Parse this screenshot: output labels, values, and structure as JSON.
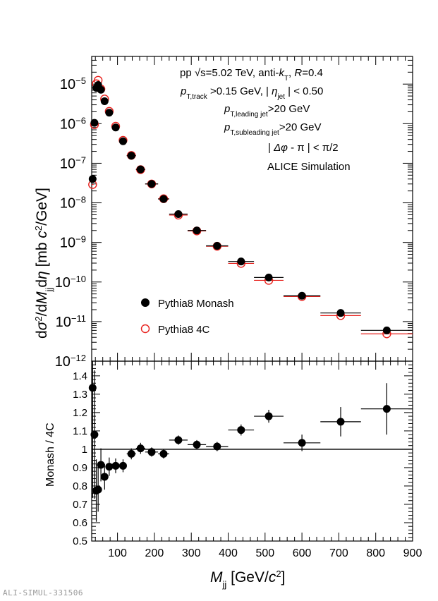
{
  "figure": {
    "preprint_id": "ALI-SIMUL-331506"
  },
  "chart_data": [
    {
      "type": "scatter",
      "panel": "top",
      "ylabel_parts": {
        "a": "d",
        "b": "σ",
        "c": "2",
        "d": "/d",
        "e": "M",
        "f": "jj",
        "g": "d",
        "h": "η",
        "i": " [mb ",
        "j": "c",
        "k": "2",
        "l": "/GeV]"
      },
      "yscale": "log",
      "ylim": [
        1e-12,
        5e-05
      ],
      "xlim": [
        30,
        900
      ],
      "y_ticks": [
        {
          "value": 1e-12,
          "label": "10",
          "exp": "−12"
        },
        {
          "value": 1e-11,
          "label": "10",
          "exp": "−11"
        },
        {
          "value": 1e-10,
          "label": "10",
          "exp": "−10"
        },
        {
          "value": 1e-09,
          "label": "10",
          "exp": "−9"
        },
        {
          "value": 1e-08,
          "label": "10",
          "exp": "−8"
        },
        {
          "value": 1e-07,
          "label": "10",
          "exp": "−7"
        },
        {
          "value": 1e-06,
          "label": "10",
          "exp": "−6"
        },
        {
          "value": 1e-05,
          "label": "10",
          "exp": "−5"
        }
      ],
      "annotations": {
        "line1": {
          "a": "pp ",
          "b": "√",
          "c": "s",
          "d": "=5.02 TeV, anti-",
          "e": "k",
          "f": "T",
          "g": ", ",
          "h": "R",
          "i": "=0.4"
        },
        "line2": {
          "a": "p",
          "b": "T,track",
          "c": " >0.15 GeV, | ",
          "d": "η",
          "e": "jet",
          "f": " | < 0.50"
        },
        "line3": {
          "a": "p",
          "b": "T,leading jet",
          "c": ">20 GeV"
        },
        "line4": {
          "a": "p",
          "b": "T,subleading jet",
          "c": ">20 GeV"
        },
        "line5": {
          "a": "| ",
          "b": "Δφ",
          "c": " - π | < π/2"
        },
        "line6": "ALICE Simulation"
      },
      "legend_placement": "bottom-left",
      "series": [
        {
          "name": "Pythia8 Monash",
          "marker": "filled-circle",
          "color": "#000000",
          "points": [
            {
              "x": 32.5,
              "xerr": 2.5,
              "y": 4e-08
            },
            {
              "x": 37.5,
              "xerr": 2.5,
              "y": 1.05e-06
            },
            {
              "x": 42.5,
              "xerr": 2.5,
              "y": 8e-06
            },
            {
              "x": 47.5,
              "xerr": 2.5,
              "y": 9.5e-06
            },
            {
              "x": 55,
              "xerr": 5,
              "y": 7.2e-06
            },
            {
              "x": 65,
              "xerr": 5,
              "y": 3.7e-06
            },
            {
              "x": 77.5,
              "xerr": 7.5,
              "y": 1.9e-06
            },
            {
              "x": 95,
              "xerr": 10,
              "y": 8e-07
            },
            {
              "x": 115,
              "xerr": 10,
              "y": 3.6e-07
            },
            {
              "x": 137.5,
              "xerr": 12.5,
              "y": 1.55e-07
            },
            {
              "x": 162.5,
              "xerr": 12.5,
              "y": 7e-08
            },
            {
              "x": 192.5,
              "xerr": 17.5,
              "y": 3e-08
            },
            {
              "x": 225,
              "xerr": 15,
              "y": 1.25e-08
            },
            {
              "x": 265,
              "xerr": 25,
              "y": 5.2e-09
            },
            {
              "x": 315,
              "xerr": 25,
              "y": 2e-09
            },
            {
              "x": 370,
              "xerr": 30,
              "y": 8.2e-10
            },
            {
              "x": 435,
              "xerr": 35,
              "y": 3.3e-10
            },
            {
              "x": 510,
              "xerr": 40,
              "y": 1.3e-10
            },
            {
              "x": 600,
              "xerr": 50,
              "y": 4.5e-11
            },
            {
              "x": 705,
              "xerr": 55,
              "y": 1.65e-11
            },
            {
              "x": 830,
              "xerr": 70,
              "y": 6e-12
            }
          ]
        },
        {
          "name": "Pythia8 4C",
          "marker": "open-circle",
          "color": "#e8201c",
          "points": [
            {
              "x": 32.5,
              "xerr": 2.5,
              "y": 2.9e-08
            },
            {
              "x": 37.5,
              "xerr": 2.5,
              "y": 9.5e-07
            },
            {
              "x": 42.5,
              "xerr": 2.5,
              "y": 1.02e-05
            },
            {
              "x": 47.5,
              "xerr": 2.5,
              "y": 1.25e-05
            },
            {
              "x": 55,
              "xerr": 5,
              "y": 7.5e-06
            },
            {
              "x": 65,
              "xerr": 5,
              "y": 4.2e-06
            },
            {
              "x": 77.5,
              "xerr": 7.5,
              "y": 2.05e-06
            },
            {
              "x": 95,
              "xerr": 10,
              "y": 8.6e-07
            },
            {
              "x": 115,
              "xerr": 10,
              "y": 3.8e-07
            },
            {
              "x": 137.5,
              "xerr": 12.5,
              "y": 1.58e-07
            },
            {
              "x": 162.5,
              "xerr": 12.5,
              "y": 6.9e-08
            },
            {
              "x": 192.5,
              "xerr": 17.5,
              "y": 3e-08
            },
            {
              "x": 225,
              "xerr": 15,
              "y": 1.27e-08
            },
            {
              "x": 265,
              "xerr": 25,
              "y": 4.9e-09
            },
            {
              "x": 315,
              "xerr": 25,
              "y": 1.95e-09
            },
            {
              "x": 370,
              "xerr": 30,
              "y": 8e-10
            },
            {
              "x": 435,
              "xerr": 35,
              "y": 2.95e-10
            },
            {
              "x": 510,
              "xerr": 40,
              "y": 1.1e-10
            },
            {
              "x": 600,
              "xerr": 50,
              "y": 4.3e-11
            },
            {
              "x": 705,
              "xerr": 55,
              "y": 1.42e-11
            },
            {
              "x": 830,
              "xerr": 70,
              "y": 4.9e-12
            }
          ]
        }
      ]
    },
    {
      "type": "scatter",
      "panel": "bottom",
      "ylabel": "Monash / 4C",
      "xlabel_parts": {
        "a": "M",
        "b": "jj",
        "c": " [GeV/",
        "d": "c",
        "e": "2",
        "f": "]"
      },
      "ylim": [
        0.5,
        1.48
      ],
      "xlim": [
        30,
        900
      ],
      "reference_line": 1.0,
      "x_ticks": [
        100,
        200,
        300,
        400,
        500,
        600,
        700,
        800,
        900
      ],
      "y_ticks": [
        0.5,
        0.6,
        0.7,
        0.8,
        0.9,
        1.0,
        1.1,
        1.2,
        1.3,
        1.4
      ],
      "y_tick_labels": [
        "0.5",
        "0.6",
        "0.7",
        "0.8",
        "0.9",
        "1",
        "1.1",
        "1.2",
        "1.3",
        "1.4"
      ],
      "series": [
        {
          "name": "Monash / 4C",
          "marker": "filled-circle",
          "color": "#000000",
          "points": [
            {
              "x": 32.5,
              "xerr": 2.5,
              "y": 1.335,
              "yerr": 0.6
            },
            {
              "x": 37.5,
              "xerr": 2.5,
              "y": 1.08,
              "yerr": 0.35
            },
            {
              "x": 42.5,
              "xerr": 2.5,
              "y": 0.775,
              "yerr": 0.17
            },
            {
              "x": 47.5,
              "xerr": 2.5,
              "y": 0.78,
              "yerr": 0.12
            },
            {
              "x": 55,
              "xerr": 5,
              "y": 0.915,
              "yerr": 0.09
            },
            {
              "x": 65,
              "xerr": 5,
              "y": 0.85,
              "yerr": 0.07
            },
            {
              "x": 77.5,
              "xerr": 7.5,
              "y": 0.905,
              "yerr": 0.05
            },
            {
              "x": 95,
              "xerr": 10,
              "y": 0.91,
              "yerr": 0.04
            },
            {
              "x": 115,
              "xerr": 10,
              "y": 0.91,
              "yerr": 0.035
            },
            {
              "x": 137.5,
              "xerr": 12.5,
              "y": 0.975,
              "yerr": 0.03
            },
            {
              "x": 162.5,
              "xerr": 12.5,
              "y": 1.005,
              "yerr": 0.03
            },
            {
              "x": 192.5,
              "xerr": 17.5,
              "y": 0.985,
              "yerr": 0.025
            },
            {
              "x": 225,
              "xerr": 15,
              "y": 0.975,
              "yerr": 0.025
            },
            {
              "x": 265,
              "xerr": 25,
              "y": 1.05,
              "yerr": 0.025
            },
            {
              "x": 315,
              "xerr": 25,
              "y": 1.025,
              "yerr": 0.025
            },
            {
              "x": 370,
              "xerr": 30,
              "y": 1.015,
              "yerr": 0.025
            },
            {
              "x": 435,
              "xerr": 35,
              "y": 1.105,
              "yerr": 0.03
            },
            {
              "x": 510,
              "xerr": 40,
              "y": 1.18,
              "yerr": 0.035
            },
            {
              "x": 600,
              "xerr": 50,
              "y": 1.035,
              "yerr": 0.045
            },
            {
              "x": 705,
              "xerr": 55,
              "y": 1.15,
              "yerr": 0.08
            },
            {
              "x": 830,
              "xerr": 70,
              "y": 1.22,
              "yerr": 0.14
            }
          ]
        }
      ]
    }
  ]
}
